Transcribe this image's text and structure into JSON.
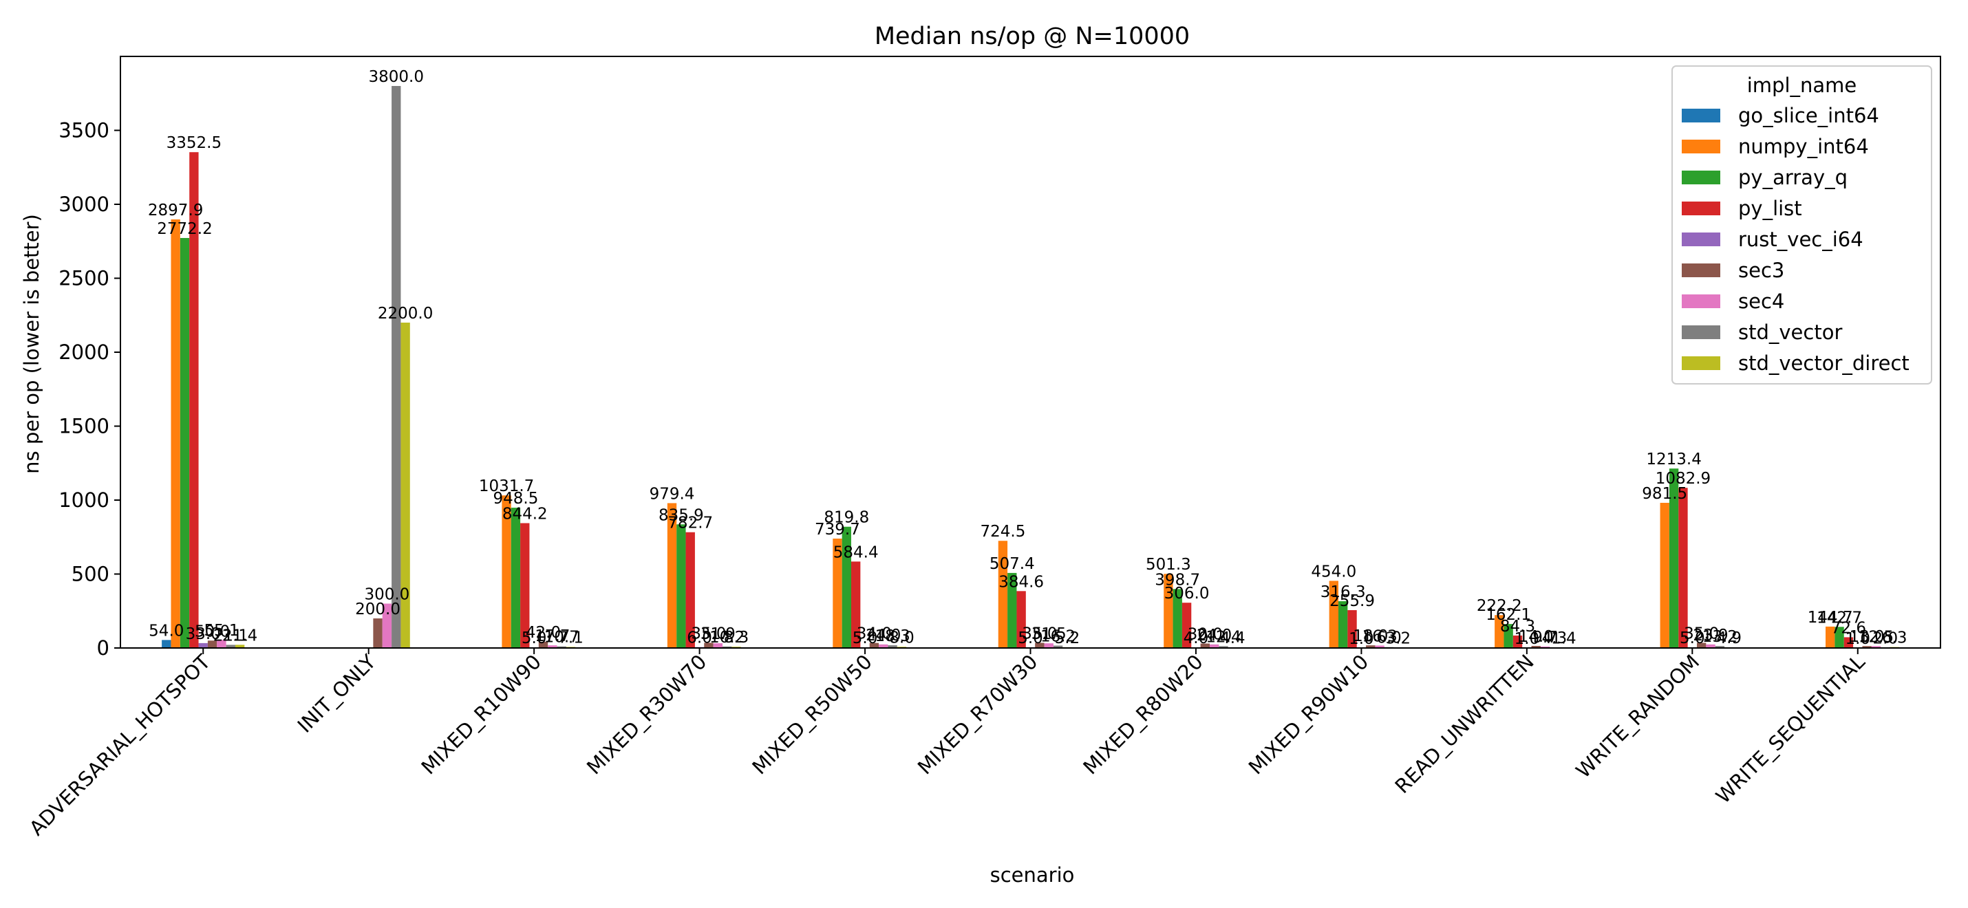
{
  "chart_data": {
    "type": "bar",
    "title": "Median ns/op @ N=10000",
    "xlabel": "scenario",
    "ylabel": "ns per op (lower is better)",
    "ylim": [
      0,
      4000
    ],
    "yticks": [
      0,
      500,
      1000,
      1500,
      2000,
      2500,
      3000,
      3500
    ],
    "grid": false,
    "legend_title": "impl_name",
    "legend_position": "top-right",
    "categories": [
      "ADVERSARIAL_HOTSPOT",
      "INIT_ONLY",
      "MIXED_R10W90",
      "MIXED_R30W70",
      "MIXED_R50W50",
      "MIXED_R70W30",
      "MIXED_R80W20",
      "MIXED_R90W10",
      "READ_UNWRITTEN",
      "WRITE_RANDOM",
      "WRITE_SEQUENTIAL"
    ],
    "series": [
      {
        "name": "go_slice_int64",
        "color": "#1f77b4",
        "values": [
          54.0,
          null,
          null,
          null,
          null,
          null,
          null,
          null,
          null,
          null,
          null
        ]
      },
      {
        "name": "numpy_int64",
        "color": "#ff7f0e",
        "values": [
          2897.9,
          null,
          1031.7,
          979.4,
          739.7,
          724.5,
          501.3,
          454.0,
          222.2,
          981.5,
          144.7
        ]
      },
      {
        "name": "py_array_q",
        "color": "#2ca02c",
        "values": [
          2772.2,
          null,
          948.5,
          835.9,
          819.8,
          507.4,
          398.7,
          316.3,
          162.1,
          1213.4,
          142.7
        ]
      },
      {
        "name": "py_list",
        "color": "#d62728",
        "values": [
          3352.5,
          null,
          844.2,
          782.7,
          584.4,
          384.6,
          306.0,
          255.9,
          84.3,
          1082.9,
          72.6
        ]
      },
      {
        "name": "rust_vec_i64",
        "color": "#9467bd",
        "values": [
          33.0,
          null,
          5.0,
          6.0,
          5.0,
          5.0,
          4.0,
          1.0,
          1.0,
          5.0,
          1.0
        ]
      },
      {
        "name": "sec3",
        "color": "#8c564b",
        "values": [
          50.0,
          200.0,
          42.0,
          35.0,
          34.0,
          35.0,
          30.0,
          18.0,
          14.0,
          35.0,
          13.0
        ]
      },
      {
        "name": "sec4",
        "color": "#e377c2",
        "values": [
          55.1,
          300.0,
          17.7,
          31.9,
          24.0,
          31.5,
          24.0,
          16.3,
          9.7,
          23.9,
          12.5
        ]
      },
      {
        "name": "std_vector",
        "color": "#7f7f7f",
        "values": [
          21.1,
          3800.0,
          10.7,
          10.2,
          18.3,
          16.2,
          12.4,
          6.0,
          4.3,
          13.2,
          2.0
        ]
      },
      {
        "name": "std_vector_direct",
        "color": "#bcbd22",
        "values": [
          21.4,
          2200.0,
          7.1,
          8.3,
          8.0,
          5.2,
          4.4,
          3.2,
          1.4,
          4.9,
          6.3
        ]
      }
    ],
    "data_labels": [
      "54.0",
      "2897.9",
      "2772.2",
      "3352.5",
      "33.0",
      "50.0",
      "55.1",
      "21.1",
      "21.4",
      "200.0",
      "300.0",
      "3800.0",
      "2200.0",
      "1031.7",
      "948.5",
      "844.2",
      "5.0",
      "42.0",
      "17.7",
      "10.7",
      "7.1",
      "979.4",
      "835.9",
      "782.7",
      "6.0",
      "35.0",
      "31.9",
      "10.2",
      "8.3",
      "739.7",
      "819.8",
      "584.4",
      "5.0",
      "34.0",
      "24.0",
      "18.3",
      "8.0",
      "724.5",
      "507.4",
      "384.6",
      "5.0",
      "35.0",
      "31.5",
      "16.2",
      "5.2",
      "501.3",
      "398.7",
      "306.0",
      "4.0",
      "30.0",
      "24.0",
      "12.4",
      "4.4",
      "454.0",
      "316.3",
      "255.9",
      "1.0",
      "18.0",
      "16.3",
      "6.0",
      "3.2",
      "222.2",
      "162.1",
      "84.3",
      "1.0",
      "14.0",
      "9.7",
      "4.3",
      "1.4",
      "981.5",
      "1213.4",
      "1082.9",
      "5.0",
      "35.0",
      "23.9",
      "13.2",
      "4.9",
      "144.7",
      "142.7",
      "72.6",
      "1.0",
      "13.0",
      "12.5",
      "2.0",
      "6.3"
    ]
  }
}
